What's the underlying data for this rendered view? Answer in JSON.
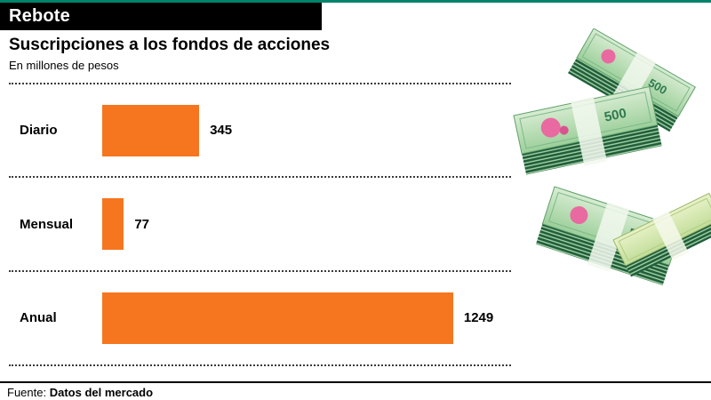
{
  "header": {
    "tag": "Rebote"
  },
  "chart_data": {
    "type": "bar",
    "orientation": "horizontal",
    "title": "Suscripciones a los fondos de acciones",
    "subtitle": "En millones de pesos",
    "categories": [
      "Diario",
      "Mensual",
      "Anual"
    ],
    "values": [
      345,
      77,
      1249
    ],
    "xlabel": "",
    "ylabel": "",
    "xlim": [
      0,
      1455
    ],
    "grid": "dotted-row-separators",
    "legend": "none",
    "bar_color": "#f5761e"
  },
  "money": {
    "denomination": "500"
  },
  "footer": {
    "source_label": "Fuente:",
    "source_value": "Datos del mercado"
  },
  "colors": {
    "accent_teal": "#00846b",
    "bar_orange": "#f5761e",
    "tag_background": "#000000",
    "tag_text": "#ffffff",
    "banknote_green": "#2f7a4f",
    "banknote_flower_pink": "#e86aa0"
  }
}
